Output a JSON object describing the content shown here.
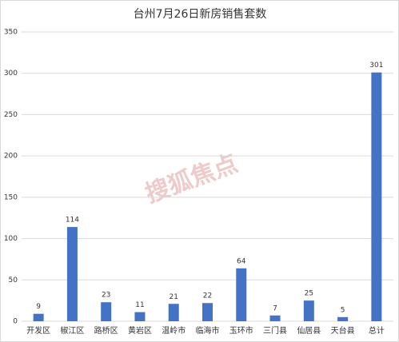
{
  "chart_data": {
    "type": "bar",
    "title": "台州7月26日新房销售套数",
    "categories": [
      "开发区",
      "椒江区",
      "路桥区",
      "黄岩区",
      "温岭市",
      "临海市",
      "玉环市",
      "三门县",
      "仙居县",
      "天台县",
      "总计"
    ],
    "values": [
      9,
      114,
      23,
      11,
      21,
      22,
      64,
      7,
      25,
      5,
      301
    ],
    "color": "#4472c4",
    "ylim": [
      0,
      350
    ],
    "yticks": [
      0,
      50,
      100,
      150,
      200,
      250,
      300,
      350
    ],
    "grid": true,
    "watermark": "搜狐焦点"
  }
}
